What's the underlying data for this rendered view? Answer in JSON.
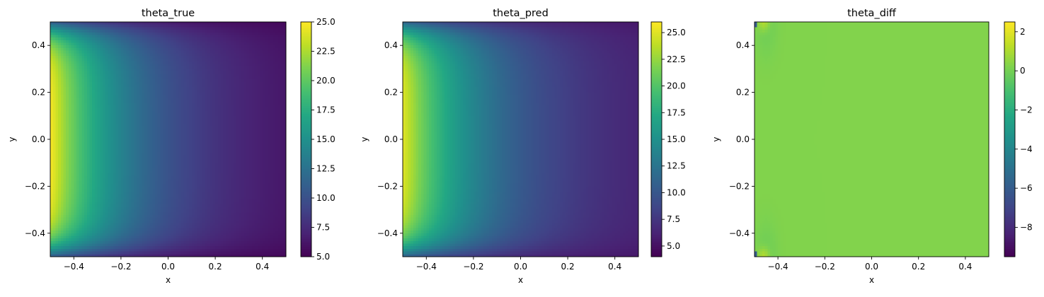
{
  "chart_data": [
    {
      "type": "heatmap",
      "title": "theta_true",
      "xlabel": "x",
      "ylabel": "y",
      "xlim": [
        -0.5,
        0.5
      ],
      "ylim": [
        -0.5,
        0.5
      ],
      "xticks": [
        "−0.4",
        "−0.2",
        "0.0",
        "0.2",
        "0.4"
      ],
      "xtick_values": [
        -0.4,
        -0.2,
        0.0,
        0.2,
        0.4
      ],
      "yticks": [
        "−0.4",
        "−0.2",
        "0.0",
        "0.2",
        "0.4"
      ],
      "ytick_values": [
        -0.4,
        -0.2,
        0.0,
        0.2,
        0.4
      ],
      "colormap": "viridis",
      "clim": [
        5,
        25
      ],
      "colorbar_ticks": [
        "5.0",
        "7.5",
        "10.0",
        "12.5",
        "15.0",
        "17.5",
        "20.0",
        "22.5",
        "25.0"
      ],
      "colorbar_tick_values": [
        5,
        7.5,
        10,
        12.5,
        15,
        17.5,
        20,
        22.5,
        25
      ],
      "field": "temperature decays from 25 at the left wall x=-0.5 toward about 5 at x=0.5, lower near the top and bottom walls"
    },
    {
      "type": "heatmap",
      "title": "theta_pred",
      "xlabel": "x",
      "ylabel": "y",
      "xlim": [
        -0.5,
        0.5
      ],
      "ylim": [
        -0.5,
        0.5
      ],
      "xticks": [
        "−0.4",
        "−0.2",
        "0.0",
        "0.2",
        "0.4"
      ],
      "xtick_values": [
        -0.4,
        -0.2,
        0.0,
        0.2,
        0.4
      ],
      "yticks": [
        "−0.4",
        "−0.2",
        "0.0",
        "0.2",
        "0.4"
      ],
      "ytick_values": [
        -0.4,
        -0.2,
        0.0,
        0.2,
        0.4
      ],
      "colormap": "viridis",
      "clim": [
        4,
        26
      ],
      "colorbar_ticks": [
        "5.0",
        "7.5",
        "10.0",
        "12.5",
        "15.0",
        "17.5",
        "20.0",
        "22.5",
        "25.0"
      ],
      "colorbar_tick_values": [
        5,
        7.5,
        10,
        12.5,
        15,
        17.5,
        20,
        22.5,
        25
      ],
      "field": "nearly identical to theta_true"
    },
    {
      "type": "heatmap",
      "title": "theta_diff",
      "xlabel": "x",
      "ylabel": "y",
      "xlim": [
        -0.5,
        0.5
      ],
      "ylim": [
        -0.5,
        0.5
      ],
      "xticks": [
        "−0.4",
        "−0.2",
        "0.0",
        "0.2",
        "0.4"
      ],
      "xtick_values": [
        -0.4,
        -0.2,
        0.0,
        0.2,
        0.4
      ],
      "yticks": [
        "−0.4",
        "−0.2",
        "0.0",
        "0.2",
        "0.4"
      ],
      "ytick_values": [
        -0.4,
        -0.2,
        0.0,
        0.2,
        0.4
      ],
      "colormap": "viridis",
      "clim": [
        -9.5,
        2.5
      ],
      "colorbar_ticks": [
        "−8",
        "−6",
        "−4",
        "−2",
        "0",
        "2"
      ],
      "colorbar_tick_values": [
        -8,
        -6,
        -4,
        -2,
        0,
        2
      ],
      "field": "approximately 0 everywhere, with small deviations at the left corners"
    }
  ]
}
